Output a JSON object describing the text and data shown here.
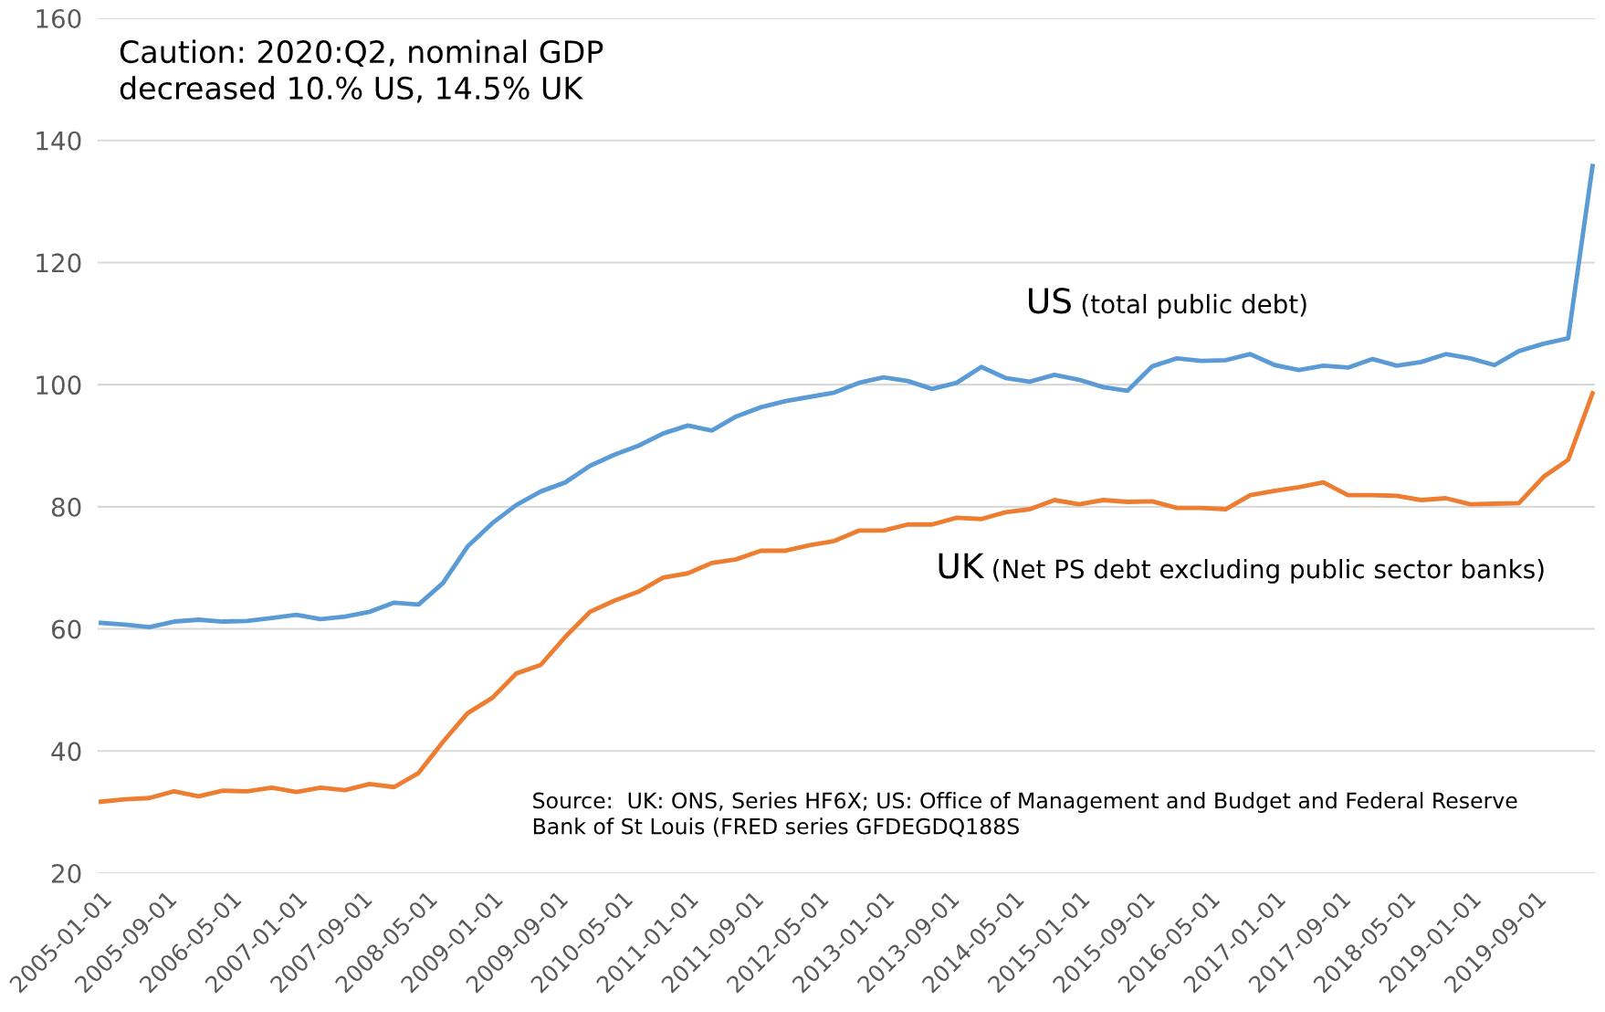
{
  "chart_data": {
    "type": "line",
    "x": [
      "2005-01-01",
      "2005-04-01",
      "2005-07-01",
      "2005-10-01",
      "2006-01-01",
      "2006-04-01",
      "2006-07-01",
      "2006-10-01",
      "2007-01-01",
      "2007-04-01",
      "2007-07-01",
      "2007-10-01",
      "2008-01-01",
      "2008-04-01",
      "2008-07-01",
      "2008-10-01",
      "2009-01-01",
      "2009-04-01",
      "2009-07-01",
      "2009-10-01",
      "2010-01-01",
      "2010-04-01",
      "2010-07-01",
      "2010-10-01",
      "2011-01-01",
      "2011-04-01",
      "2011-07-01",
      "2011-10-01",
      "2012-01-01",
      "2012-04-01",
      "2012-07-01",
      "2012-10-01",
      "2013-01-01",
      "2013-04-01",
      "2013-07-01",
      "2013-10-01",
      "2014-01-01",
      "2014-04-01",
      "2014-07-01",
      "2014-10-01",
      "2015-01-01",
      "2015-04-01",
      "2015-07-01",
      "2015-10-01",
      "2016-01-01",
      "2016-04-01",
      "2016-07-01",
      "2016-10-01",
      "2017-01-01",
      "2017-04-01",
      "2017-07-01",
      "2017-10-01",
      "2018-01-01",
      "2018-04-01",
      "2018-07-01",
      "2018-10-01",
      "2019-01-01",
      "2019-04-01",
      "2019-07-01",
      "2019-10-01",
      "2020-01-01",
      "2020-04-01"
    ],
    "series": [
      {
        "name": "US (total public debt)",
        "color": "#5b9bd5",
        "values": [
          61,
          60.7,
          60.3,
          61.2,
          61.5,
          61.2,
          61.3,
          61.8,
          62.3,
          61.6,
          62,
          62.8,
          64.3,
          64,
          67.5,
          73.5,
          77.3,
          80.3,
          82.5,
          84,
          86.7,
          88.5,
          90,
          92,
          93.3,
          92.5,
          94.8,
          96.3,
          97.3,
          98,
          98.7,
          100.3,
          101.2,
          100.6,
          99.3,
          100.3,
          102.9,
          101.1,
          100.5,
          101.6,
          100.8,
          99.6,
          99,
          103,
          104.3,
          103.9,
          104,
          105,
          103.2,
          102.4,
          103.1,
          102.8,
          104.2,
          103.1,
          103.7,
          105,
          104.3,
          103.2,
          105.5,
          106.7,
          107.6,
          135.8
        ]
      },
      {
        "name": "UK (Net PS debt excluding public sector banks)",
        "color": "#ed7d31",
        "values": [
          31.7,
          32.1,
          32.3,
          33.4,
          32.6,
          33.5,
          33.4,
          34,
          33.3,
          34,
          33.6,
          34.6,
          34.1,
          36.4,
          41.5,
          46.2,
          48.7,
          52.7,
          54.1,
          58.7,
          62.8,
          64.6,
          66.1,
          68.4,
          69.1,
          70.8,
          71.4,
          72.8,
          72.8,
          73.7,
          74.4,
          76.1,
          76.1,
          77.1,
          77.1,
          78.2,
          78,
          79.1,
          79.6,
          81.1,
          80.4,
          81.1,
          80.8,
          80.9,
          79.8,
          79.8,
          79.6,
          81.9,
          82.6,
          83.2,
          84,
          81.9,
          81.9,
          81.8,
          81.1,
          81.4,
          80.4,
          80.5,
          80.6,
          84.9,
          87.7,
          98.6
        ]
      }
    ],
    "xlim": [
      "2004-12-20",
      "2020-04-10"
    ],
    "xticks": [
      "2005-01-01",
      "2005-09-01",
      "2006-05-01",
      "2007-01-01",
      "2007-09-01",
      "2008-05-01",
      "2009-01-01",
      "2009-09-01",
      "2010-05-01",
      "2011-01-01",
      "2011-09-01",
      "2012-05-01",
      "2013-01-01",
      "2013-09-01",
      "2014-05-01",
      "2015-01-01",
      "2015-09-01",
      "2016-05-01",
      "2017-01-01",
      "2017-09-01",
      "2018-05-01",
      "2019-01-01",
      "2019-09-01"
    ],
    "ylim": [
      20,
      160
    ],
    "yticks": [
      20,
      40,
      60,
      80,
      100,
      120,
      140,
      160
    ],
    "grid": "y",
    "legend": false,
    "marker": "none",
    "line_style": "solid",
    "annotations": [
      "Caution: 2020:Q2, nominal GDP\ndecreased 10.% US, 14.5% UK",
      "Source:  UK: ONS, Series HF6X; US: Office of Management and Budget and Federal Reserve\nBank of St Louis (FRED series GFDEGDQ188S"
    ]
  }
}
